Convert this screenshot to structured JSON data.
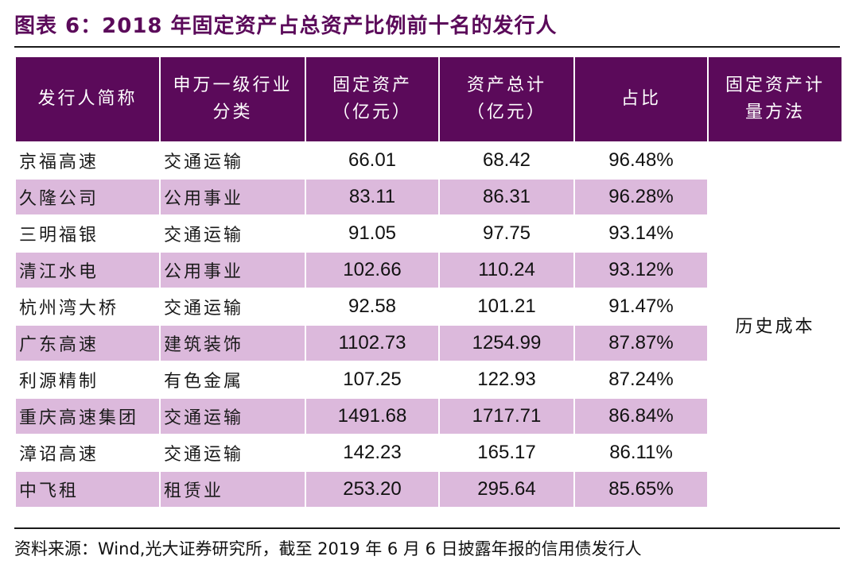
{
  "title": "图表 6：2018 年固定资产占总资产比例前十名的发行人",
  "headers": [
    [
      "发行人简称"
    ],
    [
      "申万一级行业",
      "分类"
    ],
    [
      "固定资产",
      "（亿元）"
    ],
    [
      "资产总计",
      "（亿元）"
    ],
    [
      "占比"
    ],
    [
      "固定资产计",
      "量方法"
    ]
  ],
  "rows": [
    {
      "name": "京福高速",
      "industry": "交通运输",
      "fixed": "66.01",
      "total": "68.42",
      "ratio": "96.48%"
    },
    {
      "name": "久隆公司",
      "industry": "公用事业",
      "fixed": "83.11",
      "total": "86.31",
      "ratio": "96.28%"
    },
    {
      "name": "三明福银",
      "industry": "交通运输",
      "fixed": "91.05",
      "total": "97.75",
      "ratio": "93.14%"
    },
    {
      "name": "清江水电",
      "industry": "公用事业",
      "fixed": "102.66",
      "total": "110.24",
      "ratio": "93.12%"
    },
    {
      "name": "杭州湾大桥",
      "industry": "交通运输",
      "fixed": "92.58",
      "total": "101.21",
      "ratio": "91.47%"
    },
    {
      "name": "广东高速",
      "industry": "建筑装饰",
      "fixed": "1102.73",
      "total": "1254.99",
      "ratio": "87.87%"
    },
    {
      "name": "利源精制",
      "industry": "有色金属",
      "fixed": "107.25",
      "total": "122.93",
      "ratio": "87.24%"
    },
    {
      "name": "重庆高速集团",
      "industry": "交通运输",
      "fixed": "1491.68",
      "total": "1717.71",
      "ratio": "86.84%"
    },
    {
      "name": "漳诏高速",
      "industry": "交通运输",
      "fixed": "142.23",
      "total": "165.17",
      "ratio": "86.11%"
    },
    {
      "name": "中飞租",
      "industry": "租赁业",
      "fixed": "253.20",
      "total": "295.64",
      "ratio": "85.65%"
    }
  ],
  "method": "历史成本",
  "source": "资料来源：Wind,光大证券研究所，截至 2019 年 6 月 6 日披露年报的信用债发行人",
  "colors": {
    "header_bg": "#5b0a5a",
    "stripe": "#dcb9dc",
    "title": "#5b0a5a"
  }
}
